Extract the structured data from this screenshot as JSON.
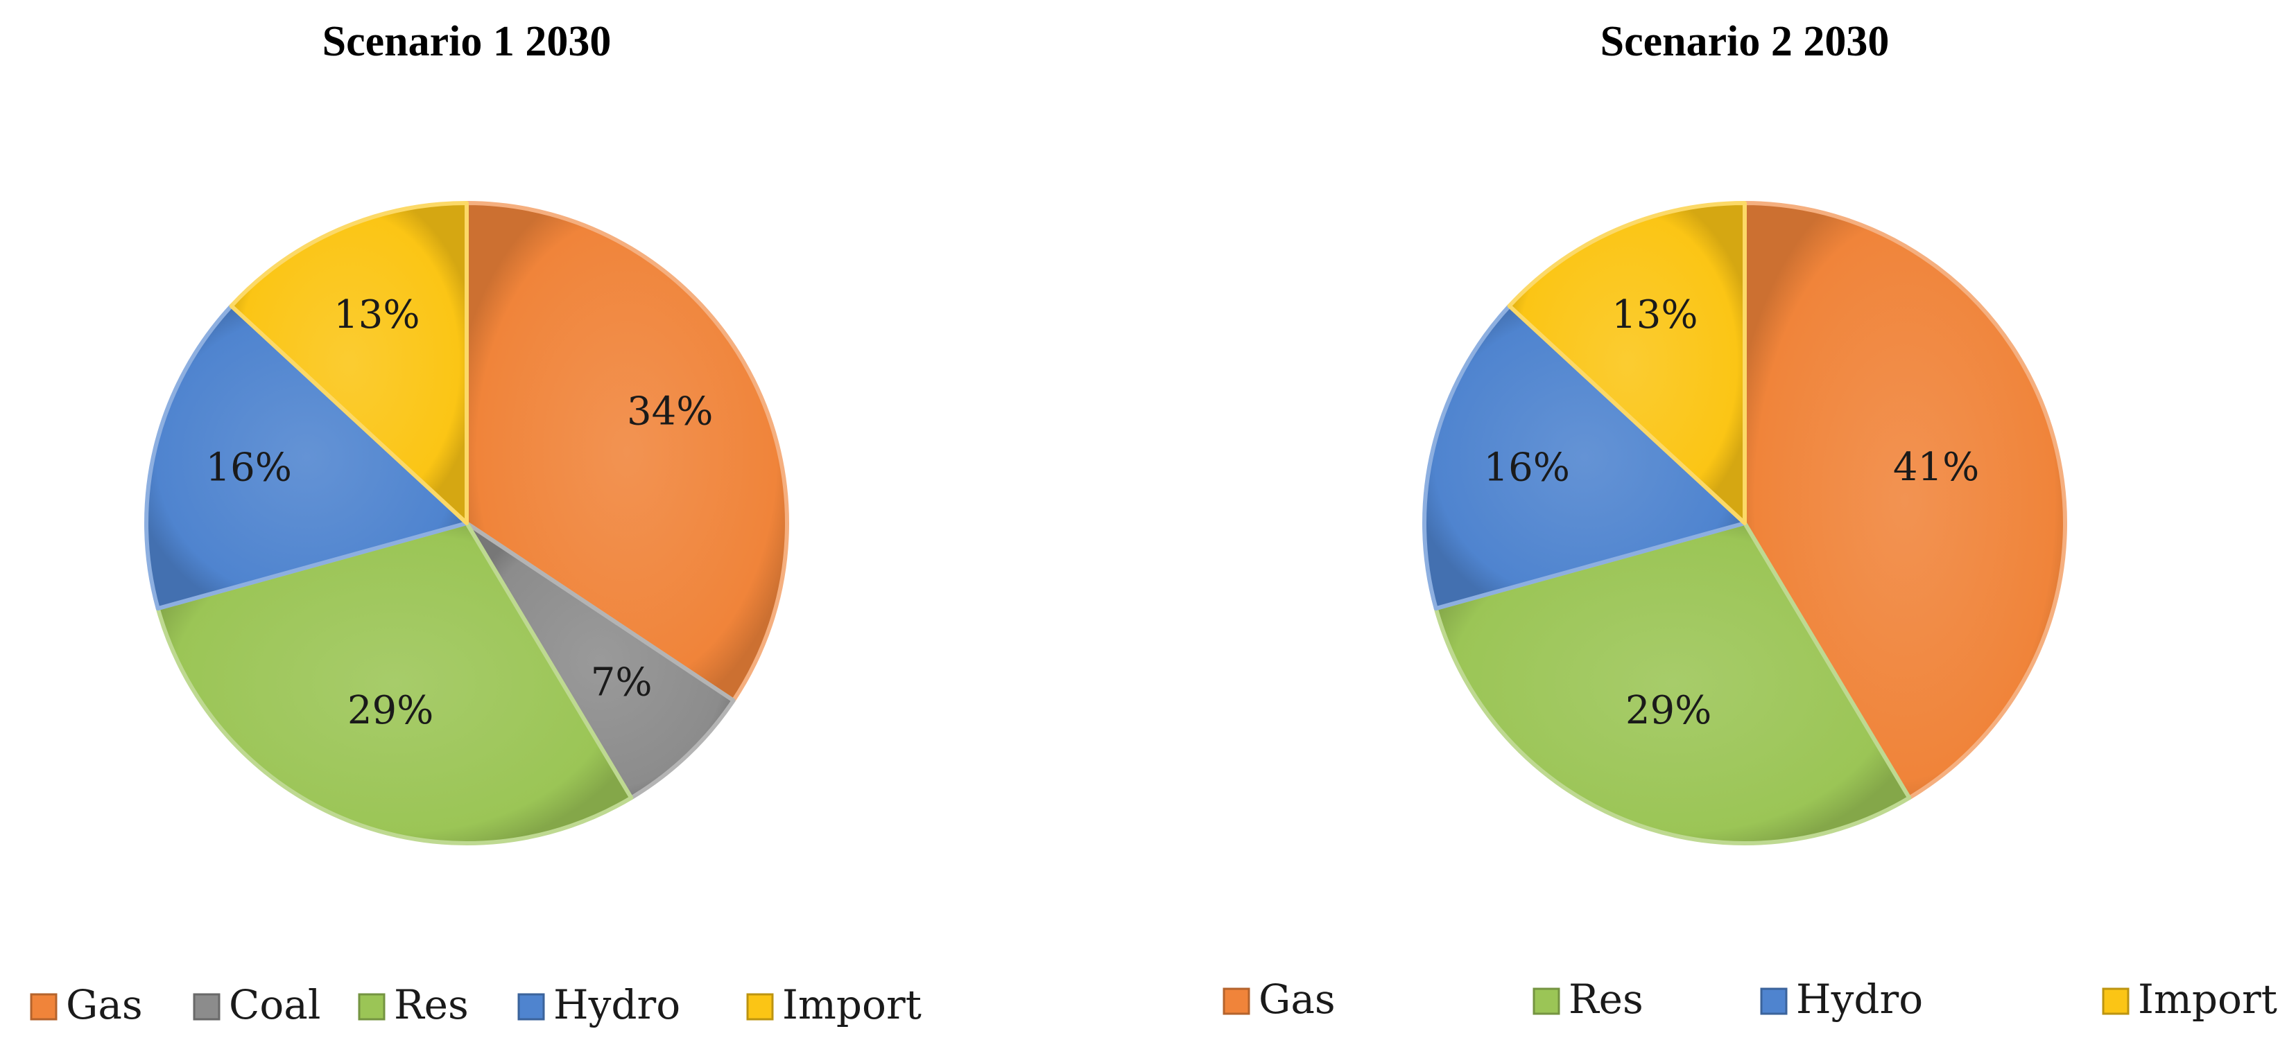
{
  "chart_data": [
    {
      "type": "pie",
      "title": "Scenario 1 2030",
      "categories": [
        "Gas",
        "Coal",
        "Res",
        "Hydro",
        "Import"
      ],
      "values": [
        34,
        7,
        29,
        16,
        13
      ],
      "labels": [
        "34%",
        "7%",
        "29%",
        "16%",
        "13%"
      ],
      "legend": [
        "Gas",
        "Coal",
        "Res",
        "Hydro",
        "Import"
      ],
      "legend_placement": "bottom"
    },
    {
      "type": "pie",
      "title": "Scenario 2 2030",
      "categories": [
        "Gas",
        "Res",
        "Hydro",
        "Import"
      ],
      "values": [
        41,
        29,
        16,
        13
      ],
      "labels": [
        "41%",
        "29%",
        "16%",
        "13%"
      ],
      "legend": [
        "Gas",
        "Res",
        "Hydro",
        "Import"
      ],
      "legend_placement": "bottom"
    }
  ],
  "colors": {
    "Gas": "#f0843a",
    "Coal": "#8c8c8c",
    "Res": "#9bc556",
    "Hydro": "#4f84cf",
    "Import": "#fbc515"
  },
  "label_color": "#1a1a1a"
}
